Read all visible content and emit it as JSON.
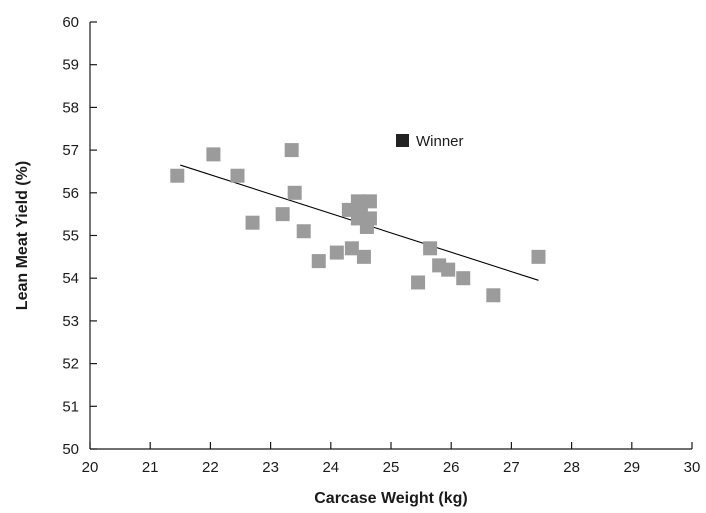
{
  "chart_data": {
    "type": "scatter",
    "xlabel": "Carcase Weight (kg)",
    "ylabel": "Lean Meat Yield (%)",
    "xlim": [
      20,
      30
    ],
    "ylim": [
      50,
      60
    ],
    "xticks": [
      "20",
      "21",
      "22",
      "23",
      "24",
      "25",
      "26",
      "27",
      "28",
      "29",
      "30"
    ],
    "yticks": [
      "50",
      "51",
      "52",
      "53",
      "54",
      "55",
      "56",
      "57",
      "58",
      "59",
      "60"
    ],
    "grid": false,
    "legend": {
      "position": "top-center",
      "entries": [
        {
          "label": "Winner",
          "color": "#222222"
        }
      ]
    },
    "series": [
      {
        "color": "#9b9b9b",
        "marker": "square",
        "points": [
          {
            "x": 21.45,
            "y": 56.4
          },
          {
            "x": 22.05,
            "y": 56.9
          },
          {
            "x": 22.45,
            "y": 56.4
          },
          {
            "x": 22.7,
            "y": 55.3
          },
          {
            "x": 23.2,
            "y": 55.5
          },
          {
            "x": 23.35,
            "y": 57.0
          },
          {
            "x": 23.4,
            "y": 56.0
          },
          {
            "x": 23.55,
            "y": 55.1
          },
          {
            "x": 23.8,
            "y": 54.4
          },
          {
            "x": 24.1,
            "y": 54.6
          },
          {
            "x": 24.3,
            "y": 55.6
          },
          {
            "x": 24.35,
            "y": 54.7
          },
          {
            "x": 24.45,
            "y": 55.8
          },
          {
            "x": 24.45,
            "y": 55.4
          },
          {
            "x": 24.5,
            "y": 55.6
          },
          {
            "x": 24.55,
            "y": 54.5
          },
          {
            "x": 24.6,
            "y": 55.2
          },
          {
            "x": 24.65,
            "y": 55.4
          },
          {
            "x": 24.65,
            "y": 55.8
          },
          {
            "x": 25.45,
            "y": 53.9
          },
          {
            "x": 25.65,
            "y": 54.7
          },
          {
            "x": 25.8,
            "y": 54.3
          },
          {
            "x": 25.95,
            "y": 54.2
          },
          {
            "x": 26.2,
            "y": 54.0
          },
          {
            "x": 26.7,
            "y": 53.6
          },
          {
            "x": 27.45,
            "y": 54.5
          }
        ]
      }
    ],
    "trendline": {
      "color": "#000000",
      "start": {
        "x": 21.5,
        "y": 56.65
      },
      "end": {
        "x": 27.45,
        "y": 53.95
      }
    }
  }
}
